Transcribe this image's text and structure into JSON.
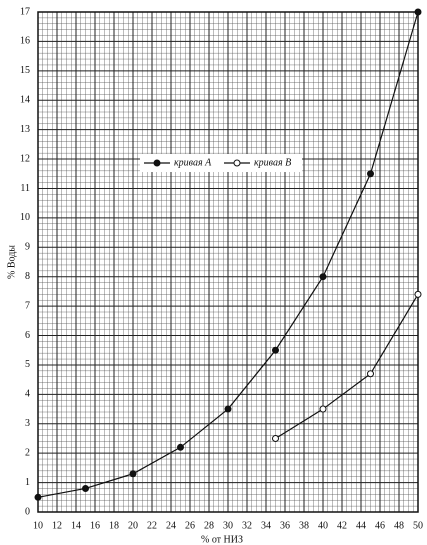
{
  "chart_data": {
    "type": "line",
    "xlabel": "% от НИЗ",
    "ylabel": "% Воды",
    "xlim": [
      10,
      50
    ],
    "xticks": [
      10,
      12,
      14,
      16,
      18,
      20,
      22,
      24,
      26,
      28,
      30,
      32,
      34,
      36,
      38,
      40,
      42,
      44,
      46,
      48,
      50
    ],
    "ylim": [
      0,
      17
    ],
    "yticks": [
      0,
      1,
      2,
      3,
      4,
      5,
      6,
      7,
      8,
      9,
      10,
      11,
      12,
      13,
      14,
      15,
      16,
      17
    ],
    "grid": true,
    "series": [
      {
        "name": "кривая А",
        "color": "#111111",
        "marker": "filled",
        "x": [
          10,
          15,
          20,
          25,
          30,
          35,
          40,
          45,
          50
        ],
        "values": [
          0.5,
          0.8,
          1.3,
          2.2,
          3.5,
          5.5,
          8.0,
          11.5,
          17
        ]
      },
      {
        "name": "кривая В",
        "color": "#111111",
        "marker": "open",
        "x": [
          35,
          40,
          45,
          50
        ],
        "values": [
          2.5,
          3.5,
          4.7,
          7.4
        ]
      }
    ]
  }
}
